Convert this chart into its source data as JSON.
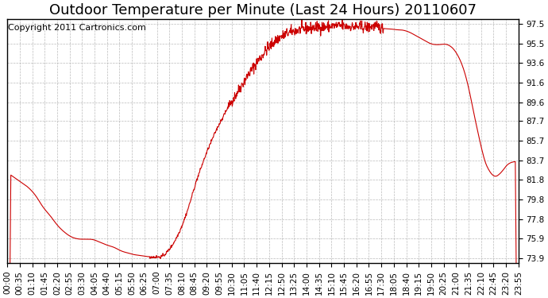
{
  "title": "Outdoor Temperature per Minute (Last 24 Hours) 20110607",
  "copyright_text": "Copyright 2011 Cartronics.com",
  "line_color": "#cc0000",
  "background_color": "#ffffff",
  "plot_bg_color": "#ffffff",
  "grid_color": "#aaaaaa",
  "yticks": [
    73.9,
    75.9,
    77.8,
    79.8,
    81.8,
    83.7,
    85.7,
    87.7,
    89.6,
    91.6,
    93.6,
    95.5,
    97.5
  ],
  "ylim": [
    73.4,
    98.0
  ],
  "xtick_labels": [
    "00:00",
    "00:35",
    "01:10",
    "01:45",
    "02:20",
    "02:55",
    "03:30",
    "04:05",
    "04:40",
    "05:15",
    "05:50",
    "06:25",
    "07:00",
    "07:35",
    "08:10",
    "08:45",
    "09:20",
    "09:55",
    "10:30",
    "11:05",
    "11:40",
    "12:15",
    "12:50",
    "13:25",
    "14:00",
    "14:35",
    "15:10",
    "15:45",
    "16:20",
    "16:55",
    "17:30",
    "18:05",
    "18:40",
    "19:15",
    "19:50",
    "20:25",
    "21:00",
    "21:35",
    "22:10",
    "22:45",
    "23:20",
    "23:55"
  ],
  "ctrl_x": [
    0,
    20,
    40,
    60,
    80,
    100,
    120,
    140,
    160,
    180,
    200,
    220,
    240,
    260,
    280,
    300,
    310,
    320,
    330,
    340,
    350,
    360,
    370,
    380,
    390,
    400,
    410,
    420,
    435,
    450,
    470,
    490,
    510,
    530,
    560,
    590,
    620,
    650,
    680,
    700,
    720,
    740,
    760,
    780,
    800,
    820,
    840,
    860,
    880,
    900,
    920,
    940,
    960,
    980,
    1000,
    1010,
    1020,
    1030,
    1040,
    1050,
    1060,
    1070,
    1080,
    1090,
    1100,
    1110,
    1120,
    1130,
    1140,
    1150,
    1160,
    1170,
    1180,
    1190,
    1200,
    1210,
    1220,
    1230,
    1240,
    1250,
    1260,
    1270,
    1280,
    1290,
    1300,
    1310,
    1320,
    1330,
    1340,
    1350,
    1360,
    1370,
    1380,
    1390,
    1400,
    1410,
    1420,
    1430,
    1439
  ],
  "ctrl_y": [
    82.5,
    82.0,
    81.5,
    81.0,
    80.2,
    79.0,
    78.2,
    77.2,
    76.5,
    76.0,
    75.8,
    75.8,
    75.8,
    75.5,
    75.2,
    75.0,
    74.8,
    74.6,
    74.5,
    74.4,
    74.3,
    74.2,
    74.2,
    74.1,
    74.1,
    74.0,
    74.0,
    74.0,
    74.0,
    74.5,
    75.5,
    77.0,
    79.0,
    81.5,
    84.5,
    87.0,
    89.0,
    90.8,
    92.5,
    93.5,
    94.5,
    95.3,
    96.0,
    96.4,
    96.7,
    96.9,
    97.0,
    97.1,
    97.2,
    97.2,
    97.3,
    97.3,
    97.2,
    97.2,
    97.2,
    97.1,
    97.2,
    97.3,
    97.2,
    97.1,
    97.0,
    97.0,
    97.0,
    96.9,
    96.9,
    96.9,
    96.8,
    96.7,
    96.5,
    96.3,
    96.1,
    95.9,
    95.7,
    95.5,
    95.4,
    95.4,
    95.4,
    95.5,
    95.4,
    95.2,
    94.8,
    94.2,
    93.4,
    92.3,
    90.8,
    89.0,
    87.2,
    85.7,
    84.0,
    83.0,
    82.5,
    82.0,
    82.2,
    82.5,
    83.0,
    83.5,
    83.5,
    83.7,
    83.6
  ],
  "title_fontsize": 13,
  "tick_fontsize": 7.5,
  "copyright_fontsize": 8
}
